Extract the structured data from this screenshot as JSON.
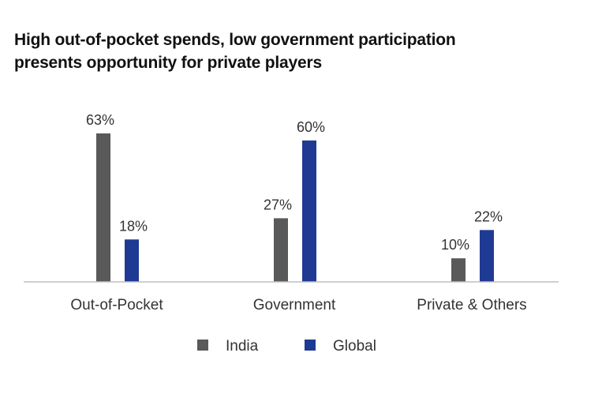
{
  "chart_data": {
    "type": "bar",
    "title_lines": [
      "High out-of-pocket spends, low government participation",
      "presents opportunity for private players"
    ],
    "categories": [
      "Out-of-Pocket",
      "Government",
      "Private & Others"
    ],
    "series": [
      {
        "name": "India",
        "color": "#595959",
        "values": [
          63,
          27,
          10
        ],
        "labels": [
          "63%",
          "27%",
          "10%"
        ]
      },
      {
        "name": "Global",
        "color": "#1f3a93",
        "values": [
          18,
          60,
          22
        ],
        "labels": [
          "18%",
          "60%",
          "22%"
        ]
      }
    ],
    "ylim": [
      0,
      66
    ],
    "xlabel": "",
    "ylabel": "",
    "grid": false,
    "legend": "bottom-center"
  }
}
